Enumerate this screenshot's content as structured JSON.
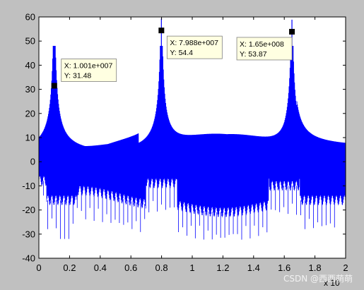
{
  "figure": {
    "background": "#c0c0c0",
    "axes_background": "#ffffff"
  },
  "chart_data": {
    "type": "line",
    "title": "",
    "xlabel": "",
    "ylabel": "",
    "x_exponent_label": "x 10",
    "xlim": [
      0,
      2
    ],
    "ylim": [
      -40,
      60
    ],
    "xticks": [
      0,
      0.2,
      0.4,
      0.6,
      0.8,
      1,
      1.2,
      1.4,
      1.6,
      1.8,
      2
    ],
    "xtick_labels": [
      "0",
      "0.2",
      "0.4",
      "0.6",
      "0.8",
      "1",
      "1.2",
      "1.4",
      "1.6",
      "1.8",
      "2"
    ],
    "yticks": [
      -40,
      -30,
      -20,
      -10,
      0,
      10,
      20,
      30,
      40,
      50,
      60
    ],
    "ytick_labels": [
      "-40",
      "-30",
      "-20",
      "-10",
      "0",
      "10",
      "20",
      "30",
      "40",
      "50",
      "60"
    ],
    "grid": false,
    "series": [
      {
        "color": "#0000ff",
        "peaks": [
          {
            "x": 0.1001,
            "y": 31.48
          },
          {
            "x": 0.7988,
            "y": 54.4
          },
          {
            "x": 1.65,
            "y": 53.87
          }
        ]
      }
    ],
    "datatips": [
      {
        "x": 0.1001,
        "y": 31.48,
        "x_text": "X: 1.001e+007",
        "y_text": "Y: 31.48"
      },
      {
        "x": 0.7988,
        "y": 54.4,
        "x_text": "X: 7.988e+007",
        "y_text": "Y: 54.4"
      },
      {
        "x": 1.65,
        "y": 53.87,
        "x_text": "X: 1.65e+008",
        "y_text": "Y: 53.87"
      }
    ]
  },
  "watermark": "CSDN @西西萌萌"
}
